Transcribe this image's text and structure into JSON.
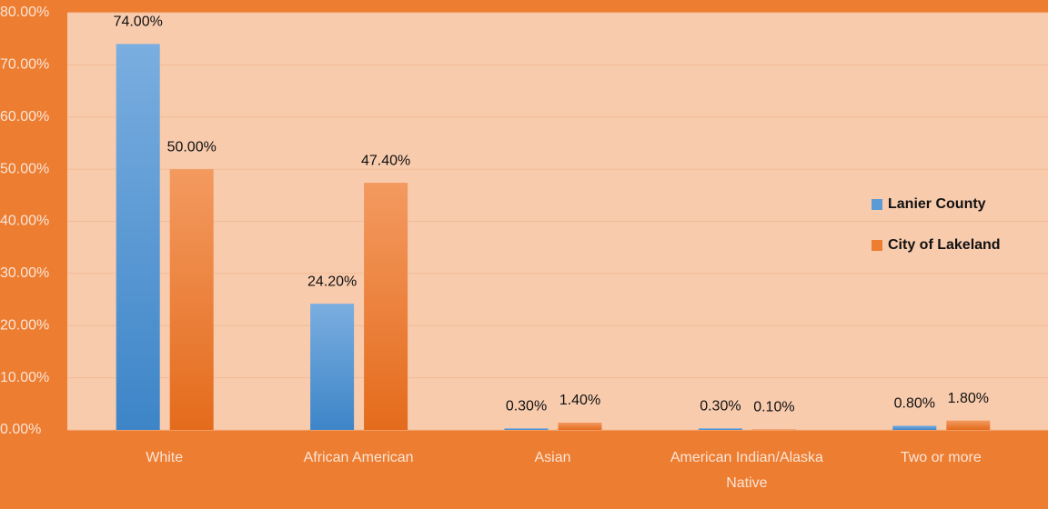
{
  "chart_data": {
    "type": "bar",
    "categories": [
      "White",
      "African American",
      "Asian",
      "American Indian/Alaska Native",
      "Two or more"
    ],
    "series": [
      {
        "name": "Lanier County",
        "color": "#5B9BD5",
        "values": [
          74,
          24.2,
          0.3,
          0.3,
          0.8
        ],
        "value_labels": [
          "74.00%",
          "24.20%",
          "0.30%",
          "0.30%",
          "0.80%"
        ]
      },
      {
        "name": "City of Lakeland",
        "color": "#ED7D31",
        "values": [
          50,
          47.4,
          1.4,
          0.1,
          1.8
        ],
        "value_labels": [
          "50.00%",
          "47.40%",
          "1.40%",
          "0.10%",
          "1.80%"
        ]
      }
    ],
    "ylim": [
      0,
      80
    ],
    "yticks": [
      {
        "value": 0,
        "label": "0.00%"
      },
      {
        "value": 10,
        "label": "10.00%"
      },
      {
        "value": 20,
        "label": "20.00%"
      },
      {
        "value": 30,
        "label": "30.00%"
      },
      {
        "value": 40,
        "label": "40.00%"
      },
      {
        "value": 50,
        "label": "50.00%"
      },
      {
        "value": 60,
        "label": "60.00%"
      },
      {
        "value": 70,
        "label": "70.00%"
      },
      {
        "value": 80,
        "label": "80.00%"
      }
    ],
    "grid": true,
    "legend": "right"
  }
}
